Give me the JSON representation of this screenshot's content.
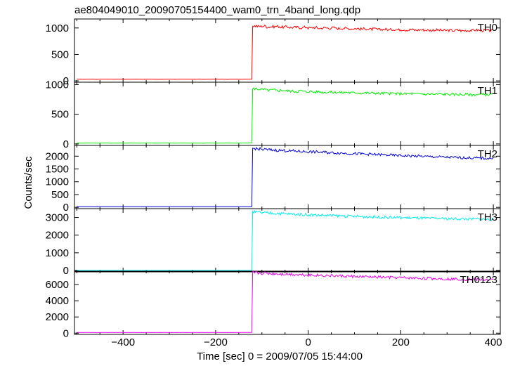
{
  "title": "ae804049010_20090705154400_wam0_trn_4band_long.qdp",
  "ylabel": "Counts/sec",
  "xlabel": "Time [sec] 0 = 2009/07/05 15:44:00",
  "chart_data": {
    "type": "line",
    "xlim": [
      -505,
      415
    ],
    "x_ticks": [
      -400,
      -200,
      0,
      200,
      400
    ],
    "x_tick_labels": [
      "−400",
      "−200",
      "0",
      "200",
      "400"
    ],
    "panels": [
      {
        "name": "TH0",
        "color": "#ff0000",
        "ylim": [
          -25,
          1170
        ],
        "y_ticks": [
          0,
          500,
          1000
        ],
        "y_tick_labels": [
          "0",
          "500",
          "1000"
        ],
        "x_start": -500,
        "x_end": 400,
        "x_step": 10,
        "y": [
          32,
          30,
          31,
          33,
          29,
          31,
          32,
          30,
          31,
          32,
          29,
          30,
          33,
          31,
          30,
          32,
          31,
          29,
          30,
          32,
          31,
          30,
          32,
          31,
          30,
          31,
          33,
          30,
          31,
          32,
          30,
          31,
          29,
          31,
          32,
          30,
          31,
          32,
          1040,
          1030,
          1035,
          1020,
          1025,
          1030,
          1015,
          1020,
          1010,
          1012,
          1005,
          1015,
          1000,
          1008,
          995,
          1002,
          998,
          1005,
          990,
          995,
          992,
          985,
          990,
          980,
          985,
          975,
          980,
          970,
          975,
          968,
          972,
          965,
          970,
          962,
          968,
          958,
          965,
          960,
          955,
          962,
          958,
          952,
          955,
          950,
          958,
          948,
          952,
          955,
          960,
          950,
          955,
          948,
          952
        ]
      },
      {
        "name": "TH1",
        "color": "#00ee00",
        "ylim": [
          -25,
          1040
        ],
        "y_ticks": [
          0,
          500,
          1000
        ],
        "y_tick_labels": [
          "0",
          "500",
          "1000"
        ],
        "x_start": -500,
        "x_end": 400,
        "x_step": 10,
        "y": [
          15,
          14,
          16,
          15,
          13,
          15,
          16,
          14,
          15,
          15,
          14,
          16,
          15,
          14,
          15,
          16,
          15,
          14,
          15,
          16,
          15,
          14,
          15,
          16,
          14,
          15,
          15,
          14,
          16,
          15,
          14,
          15,
          16,
          15,
          14,
          15,
          16,
          15,
          930,
          925,
          915,
          905,
          910,
          900,
          905,
          895,
          890,
          885,
          895,
          880,
          885,
          875,
          880,
          870,
          875,
          868,
          872,
          865,
          870,
          862,
          865,
          858,
          860,
          855,
          858,
          850,
          855,
          848,
          852,
          845,
          850,
          842,
          848,
          840,
          845,
          838,
          842,
          835,
          840,
          836,
          838,
          832,
          835,
          830,
          835,
          828,
          832,
          835,
          830,
          835,
          840
        ]
      },
      {
        "name": "TH2",
        "color": "#0000dd",
        "ylim": [
          -50,
          2420
        ],
        "y_ticks": [
          0,
          500,
          1000,
          1500,
          2000
        ],
        "y_tick_labels": [
          "0",
          "500",
          "1000",
          "1500",
          "2000"
        ],
        "x_start": -500,
        "x_end": 400,
        "x_step": 10,
        "y": [
          25,
          24,
          26,
          25,
          23,
          25,
          26,
          24,
          25,
          25,
          24,
          26,
          25,
          24,
          25,
          26,
          25,
          24,
          25,
          26,
          25,
          24,
          25,
          26,
          24,
          25,
          25,
          24,
          26,
          25,
          24,
          25,
          26,
          25,
          24,
          25,
          26,
          25,
          2300,
          2280,
          2260,
          2250,
          2240,
          2230,
          2220,
          2215,
          2200,
          2195,
          2185,
          2180,
          2170,
          2165,
          2155,
          2150,
          2140,
          2135,
          2125,
          2120,
          2110,
          2105,
          2095,
          2090,
          2080,
          2075,
          2065,
          2060,
          2050,
          2045,
          2035,
          2030,
          2020,
          2015,
          2005,
          2000,
          1995,
          1985,
          1980,
          1975,
          1970,
          1960,
          1955,
          1950,
          1945,
          1940,
          1935,
          1930,
          1925,
          1920,
          1915,
          1912,
          1910
        ]
      },
      {
        "name": "TH3",
        "color": "#00eeee",
        "ylim": [
          -80,
          3500
        ],
        "y_ticks": [
          0,
          1000,
          2000,
          3000
        ],
        "y_tick_labels": [
          "0",
          "1000",
          "2000",
          "3000"
        ],
        "x_start": -500,
        "x_end": 400,
        "x_step": 10,
        "y": [
          10,
          9,
          11,
          10,
          8,
          10,
          11,
          9,
          10,
          10,
          9,
          11,
          10,
          9,
          10,
          11,
          10,
          9,
          10,
          11,
          10,
          9,
          10,
          11,
          9,
          10,
          10,
          9,
          11,
          10,
          9,
          10,
          11,
          10,
          9,
          10,
          11,
          10,
          3300,
          3280,
          3260,
          3250,
          3240,
          3230,
          3215,
          3205,
          3190,
          3180,
          3170,
          3160,
          3150,
          3140,
          3130,
          3120,
          3110,
          3100,
          3095,
          3085,
          3075,
          3070,
          3060,
          3050,
          3045,
          3035,
          3030,
          3020,
          3015,
          3005,
          3000,
          2995,
          2985,
          2980,
          2975,
          2965,
          2960,
          2955,
          2950,
          2945,
          2940,
          2935,
          2930,
          2925,
          2920,
          2915,
          2912,
          2910,
          2905,
          2900,
          2895,
          2892,
          2890
        ]
      },
      {
        "name": "TH0123",
        "color": "#ee00ee",
        "ylim": [
          -150,
          7650
        ],
        "y_ticks": [
          0,
          2000,
          4000,
          6000
        ],
        "y_tick_labels": [
          "0",
          "2000",
          "4000",
          "6000"
        ],
        "x_start": -500,
        "x_end": 400,
        "x_step": 10,
        "y": [
          80,
          78,
          82,
          80,
          77,
          80,
          82,
          79,
          80,
          81,
          78,
          80,
          82,
          80,
          79,
          81,
          80,
          78,
          80,
          82,
          80,
          79,
          81,
          80,
          78,
          80,
          81,
          79,
          80,
          82,
          80,
          78,
          80,
          81,
          79,
          80,
          82,
          80,
          7450,
          7420,
          7390,
          7370,
          7340,
          7320,
          7300,
          7280,
          7260,
          7240,
          7220,
          7200,
          7180,
          7160,
          7140,
          7120,
          7100,
          7080,
          7060,
          7040,
          7020,
          7000,
          6980,
          6965,
          6950,
          6935,
          6920,
          6905,
          6890,
          6875,
          6860,
          6845,
          6830,
          6815,
          6800,
          6790,
          6775,
          6760,
          6745,
          6730,
          6720,
          6705,
          6690,
          6680,
          6665,
          6650,
          6640,
          6630,
          6620,
          6610,
          6600,
          6595,
          6590
        ]
      }
    ]
  }
}
